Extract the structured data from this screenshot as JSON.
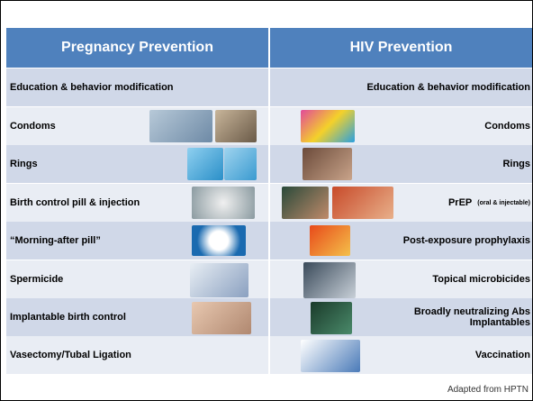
{
  "header": {
    "columns": [
      "Pregnancy Prevention",
      "HIV Prevention"
    ]
  },
  "table": {
    "rows": [
      {
        "left": "Education & behavior modification",
        "right": "Education & behavior modification"
      },
      {
        "left": "Condoms",
        "right": "Condoms"
      },
      {
        "left": "Rings",
        "right": "Rings"
      },
      {
        "left": "Birth control pill & injection",
        "right": "PrEP",
        "right_note": "(oral & injectable)"
      },
      {
        "left": "“Morning-after pill”",
        "right": "Post-exposure prophylaxis"
      },
      {
        "left": "Spermicide",
        "right": "Topical microbicides"
      },
      {
        "left": "Implantable birth control",
        "right": "Broadly neutralizing Abs",
        "right_line2": "Implantables"
      },
      {
        "left": "Vasectomy/Tubal Ligation",
        "right": "Vaccination"
      }
    ]
  },
  "footer": {
    "source": "Adapted from HPTN"
  }
}
